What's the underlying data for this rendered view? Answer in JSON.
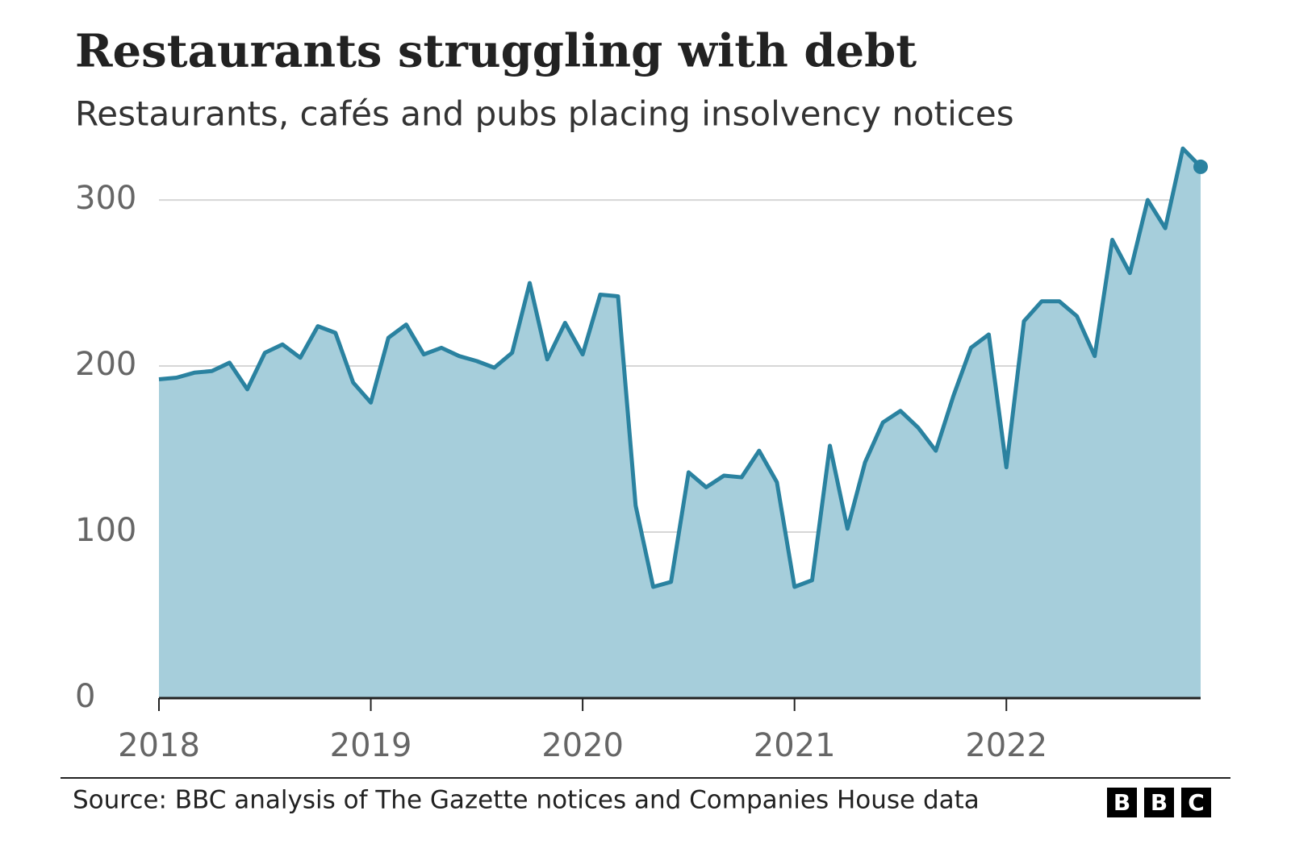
{
  "chart_data": {
    "type": "area",
    "title": "Restaurants struggling with debt",
    "subtitle": "Restaurants, cafés and pubs placing insolvency notices",
    "source": "Source: BBC analysis of The Gazette notices and Companies House data",
    "logo": [
      "B",
      "B",
      "C"
    ],
    "x": [
      2018,
      2018.083,
      2018.167,
      2018.25,
      2018.333,
      2018.417,
      2018.5,
      2018.583,
      2018.667,
      2018.75,
      2018.833,
      2018.917,
      2019,
      2019.083,
      2019.167,
      2019.25,
      2019.333,
      2019.417,
      2019.5,
      2019.583,
      2019.667,
      2019.75,
      2019.833,
      2019.917,
      2020,
      2020.083,
      2020.167,
      2020.25,
      2020.333,
      2020.417,
      2020.5,
      2020.583,
      2020.667,
      2020.75,
      2020.833,
      2020.917,
      2021,
      2021.083,
      2021.167,
      2021.25,
      2021.333,
      2021.417,
      2021.5,
      2021.583,
      2021.667,
      2021.75,
      2021.833,
      2021.917,
      2022,
      2022.083,
      2022.167,
      2022.25,
      2022.333,
      2022.417,
      2022.5,
      2022.583,
      2022.667,
      2022.75,
      2022.833,
      2022.917
    ],
    "series": [
      {
        "color": "#2a82a0",
        "fill": "#a6cedb",
        "values": [
          192,
          193,
          196,
          197,
          202,
          186,
          208,
          213,
          205,
          224,
          220,
          190,
          178,
          217,
          225,
          207,
          211,
          206,
          203,
          199,
          208,
          250,
          204,
          226,
          207,
          243,
          242,
          116,
          67,
          70,
          136,
          127,
          134,
          133,
          149,
          130,
          67,
          71,
          152,
          102,
          142,
          166,
          173,
          163,
          149,
          182,
          211,
          219,
          139,
          227,
          239,
          239,
          230,
          206,
          276,
          256,
          300,
          283,
          331,
          320
        ]
      }
    ],
    "xlim": [
      2018,
      2022.917
    ],
    "xticks": [
      2018,
      2019,
      2020,
      2021,
      2022
    ],
    "ylim": [
      0,
      335
    ],
    "yticks": [
      0,
      100,
      200,
      300
    ],
    "grid": true
  }
}
